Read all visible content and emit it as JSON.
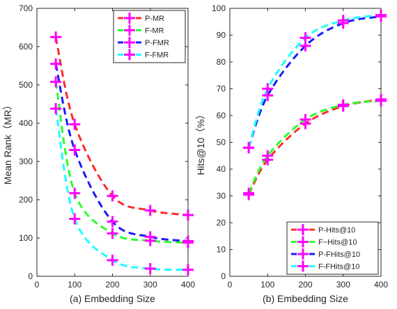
{
  "chart_data": [
    {
      "type": "line",
      "xlabel": "(a) Embedding Size",
      "ylabel": "Mean Rank（MR）",
      "xlim": [
        0,
        400
      ],
      "ylim": [
        0,
        700
      ],
      "xticks": [
        0,
        100,
        200,
        300,
        400
      ],
      "yticks": [
        0,
        100,
        200,
        300,
        400,
        500,
        600,
        700
      ],
      "legend_position": "top-right",
      "grid": false,
      "marker": "plus",
      "marker_color": "#ff00ff",
      "series": [
        {
          "name": "P-MR",
          "color": "#ff2a2a",
          "x": [
            50,
            100,
            200,
            300,
            400
          ],
          "y": [
            625,
            397,
            210,
            172,
            160
          ]
        },
        {
          "name": "F-MR",
          "color": "#2aff2a",
          "x": [
            50,
            100,
            200,
            300,
            400
          ],
          "y": [
            508,
            217,
            112,
            93,
            88
          ]
        },
        {
          "name": "P-FMR",
          "color": "#1a1aff",
          "x": [
            50,
            100,
            200,
            300,
            400
          ],
          "y": [
            555,
            330,
            143,
            103,
            92
          ]
        },
        {
          "name": "F-FMR",
          "color": "#1affff",
          "x": [
            50,
            100,
            200,
            300,
            400
          ],
          "y": [
            438,
            150,
            42,
            20,
            17
          ]
        }
      ]
    },
    {
      "type": "line",
      "xlabel": "(b) Embedding Size",
      "ylabel": "Hits@10（%）",
      "xlim": [
        0,
        400
      ],
      "ylim": [
        0,
        100
      ],
      "xticks": [
        0,
        100,
        200,
        300,
        400
      ],
      "yticks": [
        0,
        10,
        20,
        30,
        40,
        50,
        60,
        70,
        80,
        90,
        100
      ],
      "legend_position": "bottom-right",
      "grid": false,
      "marker": "plus",
      "marker_color": "#ff00ff",
      "series": [
        {
          "name": "P-Hits@10",
          "color": "#ff2a2a",
          "x": [
            50,
            100,
            200,
            300,
            400
          ],
          "y": [
            30.5,
            43.5,
            57,
            63.5,
            66
          ]
        },
        {
          "name": "F−Hits@10",
          "color": "#2aff2a",
          "x": [
            50,
            100,
            200,
            300,
            400
          ],
          "y": [
            31,
            45,
            58.5,
            64,
            65.5
          ]
        },
        {
          "name": "P-FHits@10",
          "color": "#1a1aff",
          "x": [
            50,
            100,
            200,
            300,
            400
          ],
          "y": [
            48,
            67.5,
            86,
            94.5,
            97
          ]
        },
        {
          "name": "F-FHits@10",
          "color": "#1affff",
          "x": [
            50,
            100,
            200,
            300,
            400
          ],
          "y": [
            48,
            70,
            89,
            95.5,
            97.5
          ]
        }
      ]
    }
  ]
}
